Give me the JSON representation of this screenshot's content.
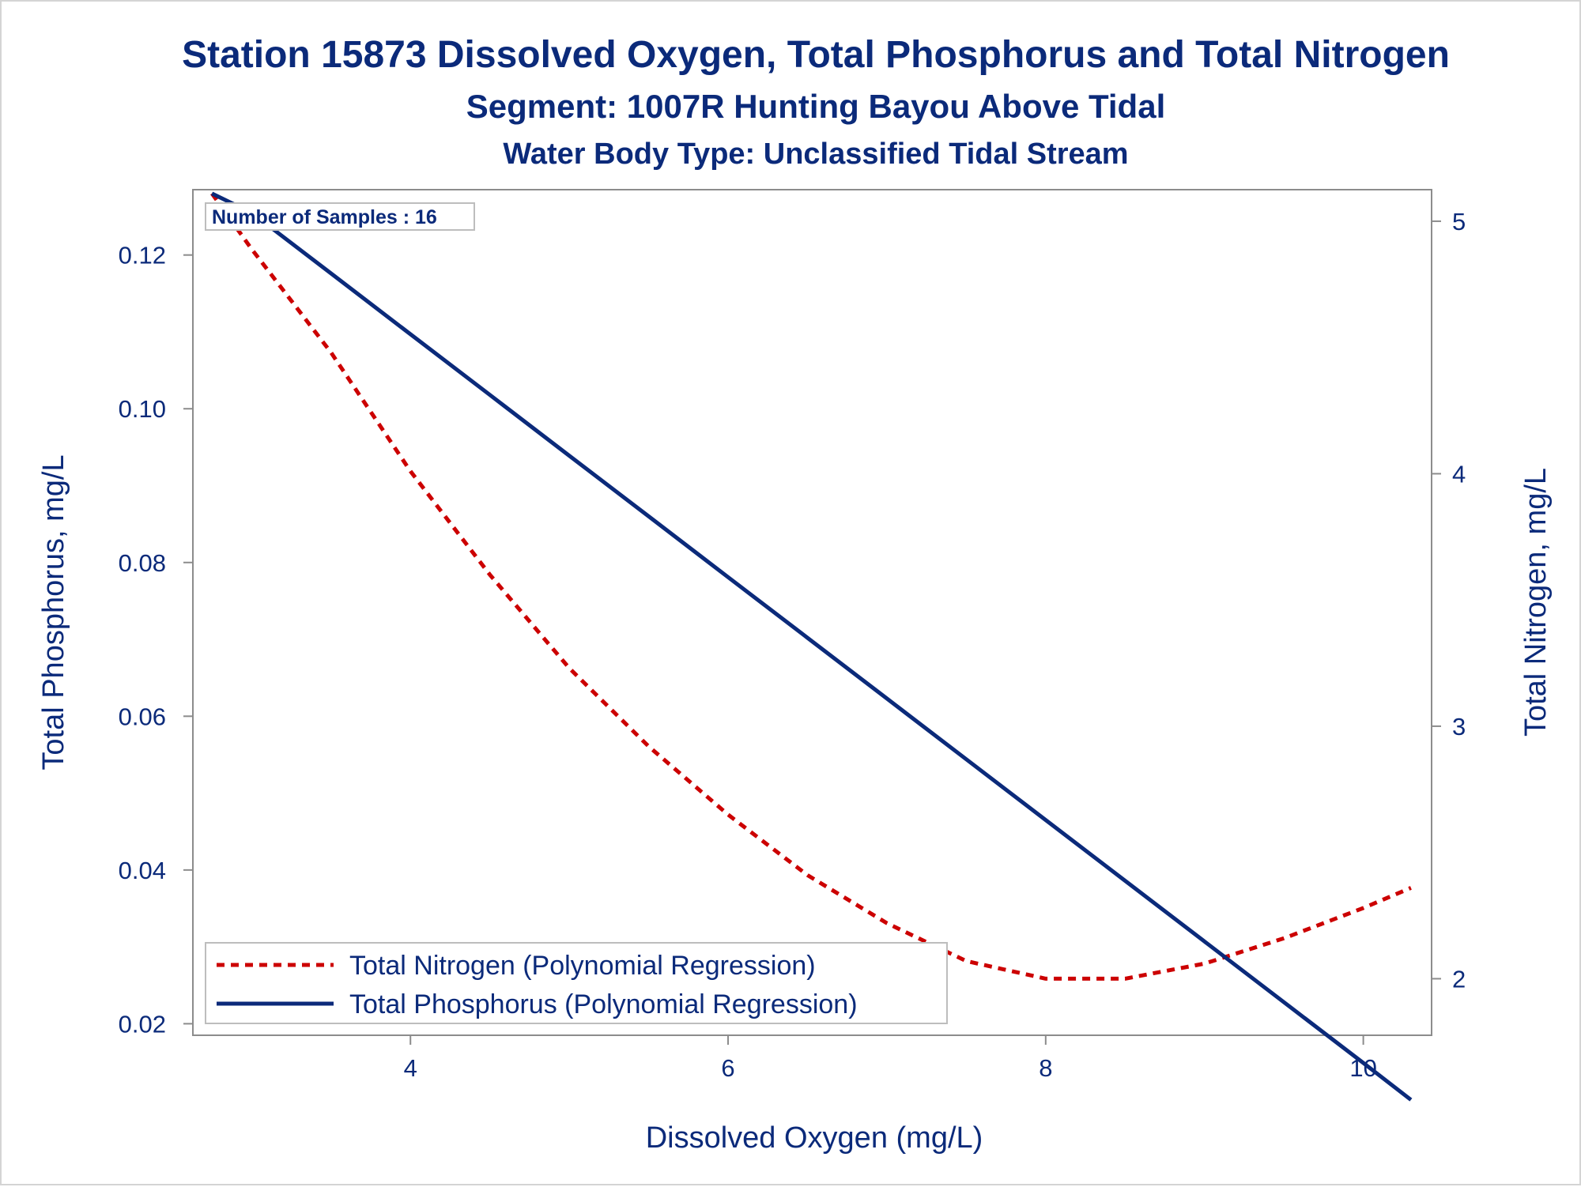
{
  "chart_data": {
    "type": "line",
    "title": "Station 15873  Dissolved Oxygen, Total Phosphorus and Total Nitrogen",
    "subtitle": "Segment: 1007R  Hunting Bayou Above Tidal",
    "subtitle2": "Water Body Type: Unclassified Tidal Stream",
    "xlabel": "Dissolved Oxygen (mg/L)",
    "ylabel": "Total Phosphorus, mg/L",
    "y2label": "Total Nitrogen, mg/L",
    "xlim": [
      2.63,
      10.43
    ],
    "ylim": [
      0.0185,
      0.1285
    ],
    "y2lim": [
      1.776,
      5.125
    ],
    "x_ticks": [
      4,
      6,
      8,
      10
    ],
    "y_ticks": [
      0.02,
      0.04,
      0.06,
      0.08,
      0.1,
      0.12
    ],
    "y_tick_labels": [
      "0.02",
      "0.04",
      "0.06",
      "0.08",
      "0.10",
      "0.12"
    ],
    "y2_ticks": [
      2,
      3,
      4,
      5
    ],
    "annotation": "Number of Samples : 16",
    "legend_position": "bottom-left",
    "grid": false,
    "series": [
      {
        "name": "Total Nitrogen (Polynomial Regression)",
        "axis": "y2",
        "style": "dashed",
        "color": "#cc0000",
        "x": [
          2.75,
          3.0,
          3.5,
          4.0,
          4.5,
          5.0,
          5.5,
          6.0,
          6.5,
          7.0,
          7.5,
          8.0,
          8.5,
          9.0,
          9.5,
          10.0,
          10.3
        ],
        "values": [
          5.11,
          4.89,
          4.48,
          4.01,
          3.6,
          3.23,
          2.92,
          2.65,
          2.41,
          2.22,
          2.07,
          2.0,
          2.0,
          2.06,
          2.16,
          2.28,
          2.36
        ]
      },
      {
        "name": "Total Phosphorus (Polynomial Regression)",
        "axis": "y",
        "style": "solid",
        "color": "#0b2a7a",
        "x": [
          2.75,
          3.0,
          3.5,
          4.0,
          4.5,
          5.0,
          5.5,
          6.0,
          6.5,
          7.0,
          7.5,
          8.0,
          8.5,
          9.0,
          9.5,
          10.0,
          10.3
        ],
        "values": [
          0.128,
          0.1255,
          0.1176,
          0.1097,
          0.1018,
          0.0939,
          0.086,
          0.0781,
          0.0702,
          0.0623,
          0.0544,
          0.0465,
          0.0386,
          0.0307,
          0.0228,
          0.0149,
          0.0101
        ]
      }
    ]
  }
}
